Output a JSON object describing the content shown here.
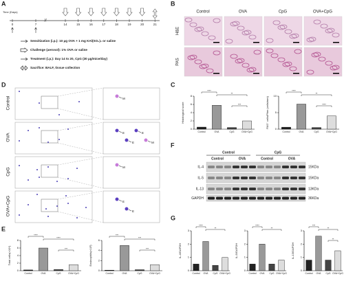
{
  "panel_labels": [
    "A",
    "B",
    "C",
    "D",
    "E",
    "F",
    "G"
  ],
  "timeline": {
    "axis_label": "Time (Days)",
    "days": [
      0,
      7,
      14,
      15,
      16,
      17,
      18,
      19,
      20,
      21
    ],
    "legend": [
      "Sensitization (i.p.): 10 μg OVA + 1 mg KAl(SO₄)₂ or saline",
      "Challenge (aerosol): 1% OVA or saline",
      "Treatment (i.p.): Day 14 to 20, CpG (30 μg/mice/day)",
      "Sacrifice: BALF, tissue collection"
    ]
  },
  "histology": {
    "groups": [
      "Control",
      "OVA",
      "CpG",
      "OVA+CpG"
    ],
    "stains": [
      "H&E",
      "PAS"
    ]
  },
  "cytospin": {
    "rows": [
      {
        "group": "Control",
        "cells": [
          "M"
        ]
      },
      {
        "group": "OVA",
        "cells": [
          "E",
          "E",
          "E",
          "M"
        ]
      },
      {
        "group": "CpG",
        "cells": [
          "M"
        ]
      },
      {
        "group": "OVA+CpG",
        "cells": [
          "E",
          "E"
        ]
      }
    ]
  },
  "western_blot": {
    "groups": [
      "Control",
      "CpG"
    ],
    "subgroups": [
      "Control",
      "OVA",
      "Control",
      "OVA"
    ],
    "bands": [
      "IL-4",
      "IL-5",
      "IL-13",
      "GAPDH"
    ],
    "sizes": [
      "15KDa",
      "15KDa",
      "13KDa",
      "36KDa"
    ]
  },
  "chart_data": [
    {
      "type": "bar",
      "y_label": "Histological score",
      "categories": [
        "Control",
        "OVA",
        "CpG",
        "OVA+CpG"
      ],
      "values": [
        0.5,
        5.8,
        0.4,
        2.0
      ],
      "colors": [
        "#222222",
        "#999999",
        "#444444",
        "#dddddd"
      ],
      "ylim": [
        0,
        8
      ],
      "yticks": [
        0,
        2,
        4,
        6,
        8
      ],
      "annotations": [
        "****",
        "**",
        "***"
      ]
    },
    {
      "type": "bar",
      "y_label": "PAS⁺ cells/Pbm (cells/mm)",
      "categories": [
        "Control",
        "OVA",
        "CpG",
        "OVA+CpG"
      ],
      "values": [
        0.6,
        7.6,
        0.5,
        4.0
      ],
      "colors": [
        "#222222",
        "#999999",
        "#444444",
        "#dddddd"
      ],
      "ylim": [
        0,
        10
      ],
      "yticks": [
        0,
        5,
        10
      ],
      "annotations": [
        "****",
        "**",
        "****"
      ]
    },
    {
      "type": "bar",
      "y_label": "Total cells(×10⁴)",
      "categories": [
        "Control",
        "OVA",
        "CpG",
        "OVA+CpG"
      ],
      "values": [
        0.2,
        6.0,
        0.3,
        1.6
      ],
      "colors": [
        "#222222",
        "#999999",
        "#444444",
        "#dddddd"
      ],
      "ylim": [
        0,
        8
      ],
      "yticks": [
        0,
        2,
        4,
        6,
        8
      ],
      "annotations": [
        "****",
        "****",
        "***"
      ]
    },
    {
      "type": "bar",
      "y_label": "Eosinophils(×10³)",
      "categories": [
        "Control",
        "OVA",
        "CpG",
        "OVA+CpG"
      ],
      "values": [
        0.1,
        5.0,
        0.2,
        1.2
      ],
      "colors": [
        "#222222",
        "#999999",
        "#444444",
        "#dddddd"
      ],
      "ylim": [
        0,
        6
      ],
      "yticks": [
        0,
        2,
        4,
        6
      ],
      "annotations": [
        "***",
        "***",
        "***"
      ]
    },
    {
      "type": "bar",
      "y_label": "IL-4/GAPDH",
      "categories": [
        "Control",
        "OVA",
        "CpG",
        "OVA+CpG"
      ],
      "values": [
        0.5,
        2.2,
        0.4,
        1.0
      ],
      "colors": [
        "#222222",
        "#999999",
        "#444444",
        "#dddddd"
      ],
      "ylim": [
        0,
        3
      ],
      "yticks": [
        0,
        1,
        2,
        3
      ],
      "annotations": [
        "****",
        "**"
      ]
    },
    {
      "type": "bar",
      "y_label": "IL-5/GAPDH",
      "categories": [
        "Control",
        "OVA",
        "CpG",
        "OVA+CpG"
      ],
      "values": [
        0.5,
        2.0,
        0.5,
        0.8
      ],
      "colors": [
        "#222222",
        "#999999",
        "#444444",
        "#dddddd"
      ],
      "ylim": [
        0,
        3
      ],
      "yticks": [
        0,
        1,
        2,
        3
      ],
      "annotations": [
        "****",
        "**"
      ]
    },
    {
      "type": "bar",
      "y_label": "IL-13/GAPDH",
      "categories": [
        "Control",
        "OVA",
        "CpG",
        "OVA+CpG"
      ],
      "values": [
        0.8,
        2.6,
        0.8,
        1.5
      ],
      "colors": [
        "#222222",
        "#999999",
        "#444444",
        "#dddddd"
      ],
      "ylim": [
        0,
        3
      ],
      "yticks": [
        0,
        1,
        2,
        3
      ],
      "annotations": [
        "***",
        "**",
        "**"
      ]
    }
  ]
}
